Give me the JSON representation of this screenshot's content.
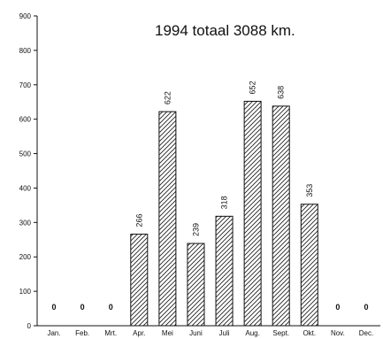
{
  "chart_data": {
    "type": "bar",
    "subtitle": "1994 totaal 3088 km.",
    "categories": [
      "Jan.",
      "Feb.",
      "Mrt.",
      "Apr.",
      "Mei",
      "Juni",
      "Juli",
      "Aug.",
      "Sept.",
      "Okt.",
      "Nov.",
      "Dec."
    ],
    "values": [
      0,
      0,
      0,
      266,
      622,
      239,
      318,
      652,
      638,
      353,
      0,
      0
    ],
    "value_labels": [
      "0",
      "0",
      "0",
      "266",
      "622",
      "239",
      "318",
      "652",
      "638",
      "353",
      "0",
      "0"
    ],
    "ylim": [
      0,
      900
    ],
    "yticks": [
      "0",
      "100",
      "200",
      "300",
      "400",
      "500",
      "600",
      "700",
      "800",
      "900"
    ],
    "bar_fill": "diagonal hatch",
    "grid": false,
    "colors": {
      "ink": "#111111",
      "background": "#ffffff"
    }
  }
}
